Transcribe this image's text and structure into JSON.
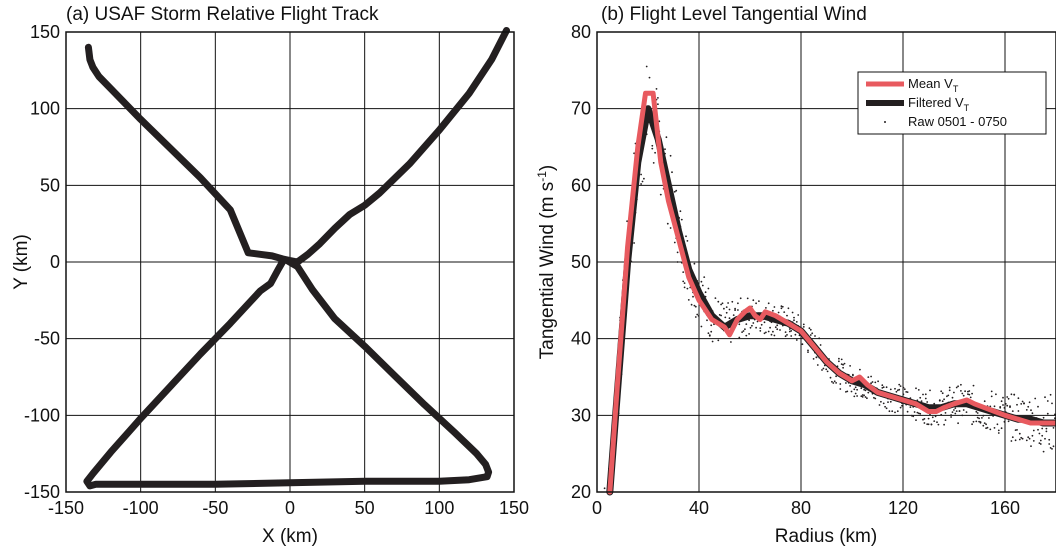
{
  "chart_data": [
    {
      "type": "line",
      "title": "(a) USAF Storm Relative Flight Track",
      "xlabel": "X (km)",
      "ylabel": "Y (km)",
      "xlim": [
        -150,
        150
      ],
      "ylim": [
        -150,
        150
      ],
      "xticks": [
        -150,
        -100,
        -50,
        0,
        50,
        100,
        150
      ],
      "yticks": [
        -150,
        -100,
        -50,
        0,
        50,
        100,
        150
      ],
      "xtick_labels": [
        "-150",
        "-100",
        "-50",
        "0",
        "50",
        "100",
        "150"
      ],
      "ytick_labels": [
        "-150",
        "-100",
        "-50",
        "0",
        "50",
        "100",
        "150"
      ],
      "grid": true,
      "series": [
        {
          "color": "#231f20",
          "x": [
            -135,
            -134,
            -132,
            -128,
            -120,
            -100,
            -80,
            -60,
            -40,
            -28,
            -20,
            -12,
            -5,
            0,
            5,
            12,
            20,
            30,
            40,
            50,
            60,
            80,
            100,
            120,
            135,
            145
          ],
          "y": [
            140,
            132,
            127,
            121,
            113,
            93,
            74,
            55,
            34,
            6,
            5,
            4,
            2,
            1,
            0,
            5,
            12,
            22,
            31,
            37,
            45,
            64,
            86,
            110,
            132,
            151
          ]
        },
        {
          "color": "#231f20",
          "x": [
            -5,
            -8,
            -13,
            -20,
            -40,
            -60,
            -80,
            -100,
            -120,
            -132,
            -136,
            -134,
            -130,
            -100,
            -50,
            0,
            50,
            100,
            120,
            132,
            133,
            131,
            125,
            110,
            90,
            70,
            50,
            30,
            15,
            5,
            -2
          ],
          "y": [
            0,
            -5,
            -14,
            -19,
            -40,
            -60,
            -81,
            -102,
            -124,
            -138,
            -143,
            -146,
            -145,
            -145,
            -145,
            -144,
            -143,
            -143,
            -142,
            -140,
            -137,
            -132,
            -125,
            -111,
            -93,
            -74,
            -55,
            -37,
            -18,
            -3,
            1
          ]
        }
      ]
    },
    {
      "type": "line",
      "title": "(b) Flight Level Tangential Wind",
      "xlabel": "Radius (km)",
      "ylabel": "Tangential Wind (m s",
      "ylabel_sup": "-1",
      "ylabel_end": ")",
      "xlim": [
        0,
        180
      ],
      "ylim": [
        20,
        80
      ],
      "xticks": [
        0,
        40,
        80,
        120,
        160
      ],
      "yticks": [
        20,
        30,
        40,
        50,
        60,
        70,
        80
      ],
      "xtick_labels": [
        "0",
        "40",
        "80",
        "120",
        "160"
      ],
      "ytick_labels": [
        "20",
        "30",
        "40",
        "50",
        "60",
        "70",
        "80"
      ],
      "grid": true,
      "legend_position": "top-right",
      "series": [
        {
          "name": "Filtered V",
          "name_sub": "T",
          "color": "#231f20",
          "x": [
            5,
            8,
            12,
            16,
            20,
            24,
            28,
            32,
            36,
            40,
            45,
            50,
            55,
            60,
            65,
            70,
            75,
            80,
            85,
            90,
            95,
            100,
            105,
            110,
            115,
            120,
            125,
            130,
            135,
            140,
            145,
            150,
            155,
            160,
            165,
            170,
            175,
            180
          ],
          "x_note": "",
          "y": [
            20,
            33,
            50,
            63,
            70,
            66,
            60,
            54,
            49,
            46,
            43,
            41.5,
            42.5,
            43,
            43,
            42.5,
            42,
            41,
            39,
            37,
            35.5,
            34.5,
            34,
            33,
            32.5,
            32,
            31.5,
            31,
            31,
            31.5,
            31.5,
            31,
            30.5,
            30,
            29.5,
            29.5,
            29,
            29
          ]
        },
        {
          "name": "Mean V",
          "name_sub": "T",
          "color": "#e85a5f",
          "x": [
            5,
            8,
            12,
            16,
            19,
            22,
            25,
            28,
            32,
            36,
            40,
            45,
            50,
            52,
            55,
            58,
            60,
            62,
            64,
            66,
            70,
            75,
            80,
            85,
            90,
            95,
            100,
            103,
            106,
            110,
            115,
            120,
            125,
            130,
            133,
            136,
            140,
            145,
            148,
            152,
            156,
            160,
            165,
            170,
            175,
            180
          ],
          "y": [
            20,
            34,
            52,
            65,
            72,
            72,
            63,
            58,
            53,
            48,
            45,
            42.5,
            41.5,
            40.5,
            42.5,
            43.5,
            44,
            43,
            42.5,
            43.5,
            43,
            42,
            41,
            39,
            37,
            35.5,
            34.5,
            35,
            34,
            33,
            32.5,
            32,
            31.5,
            30.5,
            30.5,
            31,
            31.5,
            32,
            31.5,
            31,
            30.5,
            30,
            29.5,
            29,
            29,
            29
          ]
        }
      ],
      "scatter": {
        "name": "Raw 0501 - 0750",
        "color": "#231f20",
        "spread": [
          [
            5,
            4
          ],
          [
            10,
            6
          ],
          [
            15,
            7
          ],
          [
            20,
            7
          ],
          [
            25,
            6
          ],
          [
            30,
            5
          ],
          [
            40,
            4
          ],
          [
            50,
            3
          ],
          [
            60,
            2.5
          ],
          [
            80,
            2
          ],
          [
            100,
            2
          ],
          [
            120,
            2
          ],
          [
            140,
            2.5
          ],
          [
            160,
            3
          ],
          [
            180,
            4
          ]
        ]
      }
    }
  ]
}
